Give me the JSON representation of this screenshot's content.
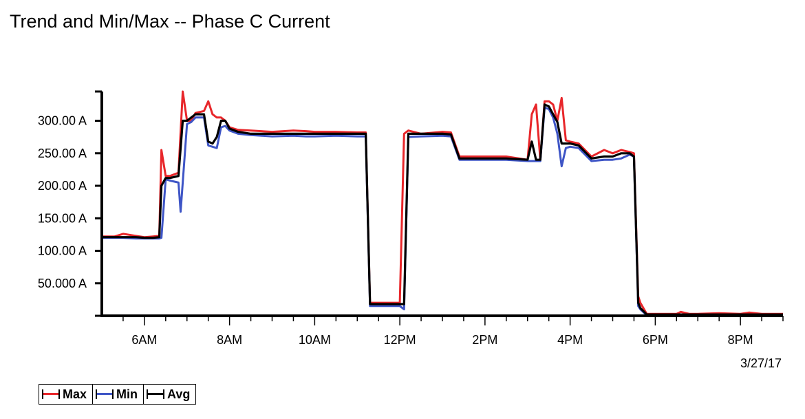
{
  "chart_data": {
    "type": "line",
    "title": "Trend and Min/Max -- Phase C Current",
    "date_label": "3/27/17",
    "x_unit": "hours",
    "xlim": [
      5.0,
      21.0
    ],
    "ylim": [
      0,
      345
    ],
    "y_ticks": [
      50,
      100,
      150,
      200,
      250,
      300
    ],
    "y_tick_labels": [
      "50.000 A",
      "100.00 A",
      "150.00 A",
      "200.00 A",
      "250.00 A",
      "300.00 A"
    ],
    "x_ticks": [
      6,
      8,
      10,
      12,
      14,
      16,
      18,
      20
    ],
    "x_tick_labels": [
      "6AM",
      "8AM",
      "10AM",
      "12PM",
      "2PM",
      "4PM",
      "6PM",
      "8PM"
    ],
    "series": [
      {
        "name": "Max",
        "color": "#e8262a",
        "x": [
          5.0,
          5.3,
          5.5,
          5.8,
          6.0,
          6.2,
          6.35,
          6.4,
          6.5,
          6.6,
          6.8,
          6.9,
          7.0,
          7.1,
          7.2,
          7.4,
          7.5,
          7.6,
          7.7,
          7.8,
          7.9,
          8.0,
          8.2,
          8.5,
          9.0,
          9.5,
          9.8,
          10.0,
          10.5,
          11.0,
          11.2,
          11.3,
          11.5,
          11.8,
          12.0,
          12.1,
          12.2,
          12.5,
          13.0,
          13.2,
          13.4,
          13.6,
          14.0,
          14.5,
          15.0,
          15.1,
          15.2,
          15.3,
          15.4,
          15.5,
          15.6,
          15.7,
          15.8,
          15.9,
          16.0,
          16.2,
          16.5,
          16.8,
          17.0,
          17.2,
          17.4,
          17.5,
          17.6,
          17.65,
          17.8,
          18.0,
          18.5,
          18.6,
          18.8,
          19.0,
          19.5,
          20.0,
          20.2,
          20.5,
          21.0
        ],
        "y": [
          122,
          122,
          126,
          123,
          121,
          122,
          123,
          255,
          215,
          215,
          220,
          345,
          300,
          300,
          312,
          315,
          330,
          310,
          305,
          305,
          300,
          290,
          286,
          285,
          283,
          285,
          284,
          283,
          283,
          282,
          282,
          20,
          20,
          20,
          20,
          280,
          285,
          280,
          283,
          282,
          245,
          245,
          245,
          245,
          240,
          310,
          325,
          240,
          330,
          330,
          325,
          300,
          335,
          270,
          268,
          265,
          245,
          255,
          250,
          255,
          252,
          250,
          30,
          20,
          3,
          3,
          3,
          6,
          3,
          3,
          4,
          3,
          5,
          3,
          3
        ]
      },
      {
        "name": "Min",
        "color": "#3e55c6",
        "x": [
          5.0,
          5.3,
          5.5,
          5.8,
          6.0,
          6.2,
          6.35,
          6.4,
          6.5,
          6.6,
          6.8,
          6.85,
          7.0,
          7.1,
          7.2,
          7.4,
          7.5,
          7.6,
          7.7,
          7.8,
          7.9,
          8.0,
          8.2,
          8.5,
          9.0,
          9.5,
          9.8,
          10.0,
          10.5,
          11.0,
          11.2,
          11.3,
          11.5,
          11.8,
          12.0,
          12.1,
          12.2,
          12.5,
          13.0,
          13.2,
          13.4,
          13.6,
          14.0,
          14.5,
          15.0,
          15.1,
          15.2,
          15.3,
          15.4,
          15.5,
          15.6,
          15.7,
          15.8,
          15.9,
          16.0,
          16.2,
          16.5,
          16.8,
          17.0,
          17.2,
          17.4,
          17.5,
          17.6,
          17.65,
          17.8,
          18.0,
          18.5,
          18.6,
          18.8,
          19.0,
          19.5,
          20.0,
          20.2,
          20.5,
          21.0
        ],
        "y": [
          120,
          120,
          120,
          119,
          119,
          119,
          119,
          120,
          210,
          208,
          205,
          160,
          295,
          298,
          305,
          305,
          262,
          260,
          258,
          290,
          292,
          285,
          280,
          278,
          276,
          277,
          276,
          276,
          277,
          276,
          276,
          15,
          15,
          15,
          15,
          10,
          275,
          276,
          277,
          276,
          240,
          240,
          240,
          240,
          238,
          238,
          238,
          238,
          320,
          318,
          305,
          280,
          230,
          258,
          260,
          258,
          238,
          240,
          240,
          242,
          248,
          245,
          15,
          10,
          1,
          1,
          1,
          1,
          1,
          1,
          1,
          1,
          1,
          1,
          1
        ]
      },
      {
        "name": "Avg",
        "color": "#000000",
        "x": [
          5.0,
          5.3,
          5.5,
          5.8,
          6.0,
          6.2,
          6.35,
          6.4,
          6.5,
          6.6,
          6.8,
          6.9,
          7.0,
          7.1,
          7.2,
          7.4,
          7.5,
          7.6,
          7.7,
          7.8,
          7.9,
          8.0,
          8.2,
          8.5,
          9.0,
          9.5,
          9.8,
          10.0,
          10.5,
          11.0,
          11.2,
          11.3,
          11.5,
          11.8,
          12.0,
          12.1,
          12.2,
          12.5,
          13.0,
          13.2,
          13.4,
          13.6,
          14.0,
          14.5,
          15.0,
          15.1,
          15.2,
          15.3,
          15.4,
          15.5,
          15.6,
          15.7,
          15.8,
          15.9,
          16.0,
          16.2,
          16.5,
          16.8,
          17.0,
          17.2,
          17.4,
          17.5,
          17.6,
          17.65,
          17.8,
          18.0,
          18.5,
          18.6,
          18.8,
          19.0,
          19.5,
          20.0,
          20.2,
          20.5,
          21.0
        ],
        "y": [
          121,
          121,
          121,
          121,
          120,
          120,
          121,
          200,
          212,
          212,
          215,
          300,
          300,
          305,
          310,
          310,
          268,
          265,
          275,
          300,
          300,
          288,
          283,
          280,
          280,
          280,
          280,
          280,
          280,
          280,
          280,
          18,
          18,
          18,
          18,
          18,
          280,
          280,
          280,
          279,
          242,
          242,
          242,
          242,
          240,
          268,
          240,
          240,
          325,
          322,
          310,
          298,
          265,
          265,
          265,
          262,
          242,
          245,
          245,
          250,
          250,
          245,
          20,
          12,
          2,
          2,
          2,
          2,
          2,
          2,
          2,
          2,
          2,
          2,
          2
        ]
      }
    ],
    "legend_position": "bottom-left",
    "grid": false
  }
}
